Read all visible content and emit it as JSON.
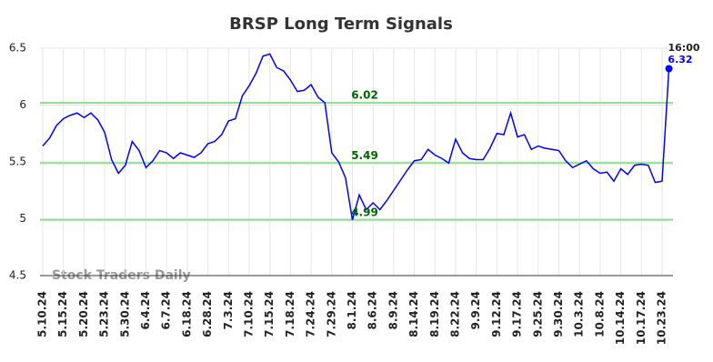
{
  "chart_data": {
    "type": "line",
    "title": "BRSP Long Term Signals",
    "watermark": "Stock Traders Daily",
    "categories": [
      "5.10.24",
      null,
      null,
      "5.15.24",
      null,
      null,
      "5.20.24",
      null,
      null,
      "5.23.24",
      null,
      null,
      "5.30.24",
      null,
      null,
      "6.4.24",
      null,
      null,
      "6.7.24",
      null,
      null,
      "6.18.24",
      null,
      null,
      "6.28.24",
      null,
      null,
      "7.3.24",
      null,
      null,
      "7.10.24",
      null,
      null,
      "7.15.24",
      null,
      null,
      "7.18.24",
      null,
      null,
      "7.24.24",
      null,
      null,
      "7.29.24",
      null,
      null,
      "8.1.24",
      null,
      null,
      "8.6.24",
      null,
      null,
      "8.9.24",
      null,
      null,
      "8.14.24",
      null,
      null,
      "8.19.24",
      null,
      null,
      "8.22.24",
      null,
      null,
      "9.9.24",
      null,
      null,
      "9.12.24",
      null,
      null,
      "9.17.24",
      null,
      null,
      "9.25.24",
      null,
      null,
      "9.30.24",
      null,
      null,
      "10.3.24",
      null,
      null,
      "10.8.24",
      null,
      null,
      "10.14.24",
      null,
      null,
      "10.17.24",
      null,
      null,
      "10.23.24",
      null
    ],
    "values": [
      5.64,
      5.71,
      5.82,
      5.88,
      5.91,
      5.93,
      5.89,
      5.93,
      5.87,
      5.76,
      5.52,
      5.4,
      5.47,
      5.68,
      5.6,
      5.45,
      5.51,
      5.6,
      5.58,
      5.53,
      5.58,
      5.56,
      5.54,
      5.58,
      5.66,
      5.68,
      5.74,
      5.86,
      5.88,
      6.08,
      6.17,
      6.28,
      6.43,
      6.45,
      6.33,
      6.3,
      6.22,
      6.12,
      6.13,
      6.18,
      6.07,
      6.02,
      5.58,
      5.5,
      5.36,
      4.99,
      5.21,
      5.08,
      5.14,
      5.08,
      5.16,
      5.25,
      5.34,
      5.43,
      5.51,
      5.52,
      5.61,
      5.56,
      5.53,
      5.49,
      5.7,
      5.58,
      5.53,
      5.52,
      5.52,
      5.62,
      5.75,
      5.74,
      5.93,
      5.72,
      5.74,
      5.61,
      5.64,
      5.62,
      5.61,
      5.6,
      5.51,
      5.45,
      5.48,
      5.51,
      5.44,
      5.4,
      5.41,
      5.33,
      5.44,
      5.39,
      5.47,
      5.48,
      5.47,
      5.32,
      5.33,
      6.32
    ],
    "color": "#0000ff",
    "last_time": "16:00",
    "signal_levels": [
      6.02,
      5.49,
      4.99
    ],
    "signal_color": "#90e090",
    "signal_label_color": "#006400",
    "ylim": [
      4.5,
      6.5
    ],
    "yticks": [
      4.5,
      5,
      5.5,
      6,
      6.5
    ],
    "grid": true
  }
}
